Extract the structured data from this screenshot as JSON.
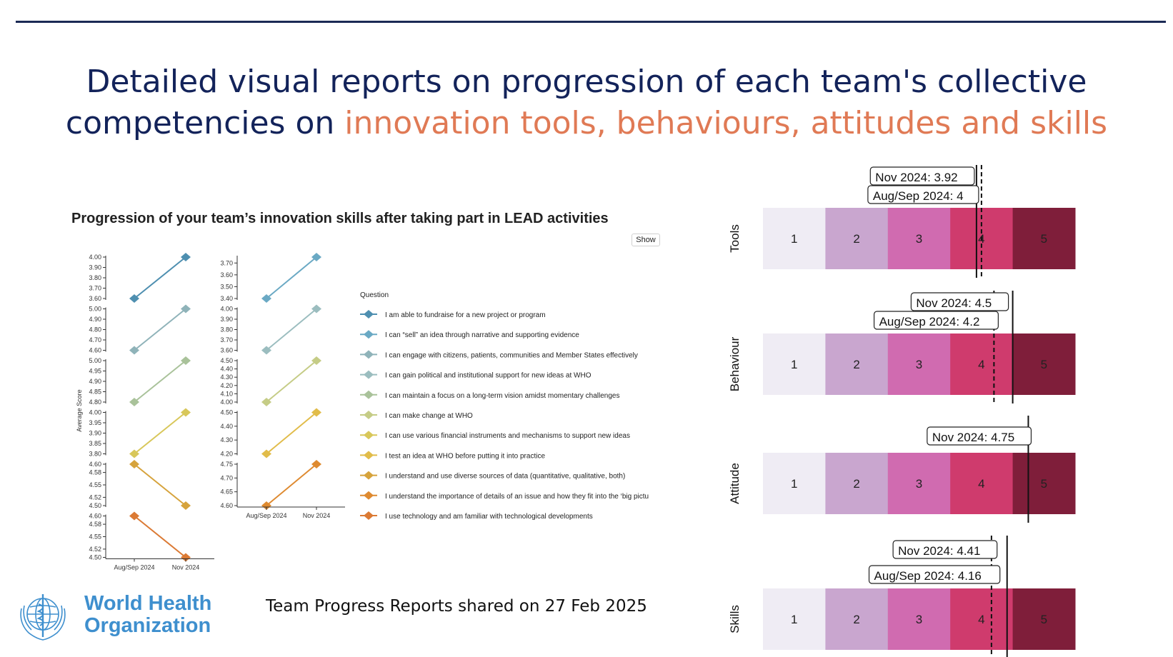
{
  "header": {
    "title_part1": "Detailed visual reports on progression of each team's collective",
    "title_part2": "competencies on ",
    "title_highlight": "innovation tools, behaviours, attitudes and skills",
    "title_color": "#13235a",
    "highlight_color": "#e07a55"
  },
  "left_chart": {
    "heading": "Progression of your team’s innovation skills after taking part in LEAD activities",
    "show_button": "Show",
    "ylabel": "Average Score",
    "legend_title": "Question"
  },
  "footer": {
    "text": "Team Progress Reports shared on 27 Feb 2025"
  },
  "logo": {
    "line1": "World Health",
    "line2": "Organization",
    "icon": "who-emblem-icon"
  },
  "chart_data": [
    {
      "type": "line",
      "title": "Progression of your team’s innovation skills after taking part in LEAD activities",
      "ylabel": "Average Score",
      "legend_title": "Question",
      "x": [
        "Aug/Sep 2024",
        "Nov 2024"
      ],
      "panels": [
        {
          "col": 0,
          "row": 0,
          "ylim": [
            3.6,
            4.0
          ],
          "ticks": [
            "3.60",
            "3.70",
            "3.80",
            "3.90",
            "4.00"
          ],
          "values": [
            3.6,
            4.0
          ],
          "color": "#4e8fb0"
        },
        {
          "col": 0,
          "row": 1,
          "ylim": [
            4.6,
            5.0
          ],
          "ticks": [
            "4.60",
            "4.70",
            "4.80",
            "4.90",
            "5.00"
          ],
          "values": [
            4.6,
            5.0
          ],
          "color": "#8fb3b9"
        },
        {
          "col": 0,
          "row": 2,
          "ylim": [
            4.8,
            5.0
          ],
          "ticks": [
            "4.80",
            "4.85",
            "4.90",
            "4.95",
            "5.00"
          ],
          "values": [
            4.8,
            5.0
          ],
          "color": "#a9c29a"
        },
        {
          "col": 0,
          "row": 3,
          "ylim": [
            3.8,
            4.0
          ],
          "ticks": [
            "3.80",
            "3.85",
            "3.90",
            "3.95",
            "4.00"
          ],
          "values": [
            3.8,
            4.0
          ],
          "color": "#d8c75a"
        },
        {
          "col": 0,
          "row": 4,
          "ylim": [
            4.5,
            4.6
          ],
          "ticks": [
            "4.50",
            "4.52",
            "4.55",
            "4.58",
            "4.60"
          ],
          "values": [
            4.6,
            4.5
          ],
          "color": "#d6a33c"
        },
        {
          "col": 0,
          "row": 5,
          "ylim": [
            4.5,
            4.6
          ],
          "ticks": [
            "4.50",
            "4.52",
            "4.55",
            "4.58",
            "4.60"
          ],
          "values": [
            4.6,
            4.5
          ],
          "color": "#db7a34"
        },
        {
          "col": 1,
          "row": 0,
          "ylim": [
            3.4,
            3.75
          ],
          "ticks": [
            "3.40",
            "3.50",
            "3.60",
            "3.70"
          ],
          "values": [
            3.4,
            3.75
          ],
          "color": "#6aa9c4"
        },
        {
          "col": 1,
          "row": 1,
          "ylim": [
            3.6,
            4.0
          ],
          "ticks": [
            "3.60",
            "3.70",
            "3.80",
            "3.90",
            "4.00"
          ],
          "values": [
            3.6,
            4.0
          ],
          "color": "#9bbdbf"
        },
        {
          "col": 1,
          "row": 2,
          "ylim": [
            4.0,
            4.5
          ],
          "ticks": [
            "4.00",
            "4.10",
            "4.20",
            "4.30",
            "4.40",
            "4.50"
          ],
          "values": [
            4.0,
            4.5
          ],
          "color": "#c5cc86"
        },
        {
          "col": 1,
          "row": 3,
          "ylim": [
            4.2,
            4.5
          ],
          "ticks": [
            "4.20",
            "4.30",
            "4.40",
            "4.50"
          ],
          "values": [
            4.2,
            4.5
          ],
          "color": "#e1bc4a"
        },
        {
          "col": 1,
          "row": 4,
          "ylim": [
            4.6,
            4.75
          ],
          "ticks": [
            "4.60",
            "4.65",
            "4.70",
            "4.75"
          ],
          "values": [
            4.6,
            4.75
          ],
          "color": "#de8a30"
        }
      ],
      "legend": [
        {
          "label": "I am able to fundraise for a new project or program",
          "color": "#4e8fb0"
        },
        {
          "label": "I can “sell” an idea through narrative and supporting evidence",
          "color": "#6aa9c4"
        },
        {
          "label": "I can engage with citizens, patients, communities and Member States effectively",
          "color": "#8fb3b9"
        },
        {
          "label": "I can gain political and institutional support for new ideas at WHO",
          "color": "#9bbdbf"
        },
        {
          "label": "I can maintain a focus on a long-term vision amidst momentary challenges",
          "color": "#a9c29a"
        },
        {
          "label": "I can make change at WHO",
          "color": "#c5cc86"
        },
        {
          "label": "I can use various financial instruments and mechanisms to support new ideas",
          "color": "#d8c75a"
        },
        {
          "label": "I test an idea at WHO before putting it into practice",
          "color": "#e1bc4a"
        },
        {
          "label": "I understand and use diverse sources of data (quantitative, qualitative, both)",
          "color": "#d6a33c"
        },
        {
          "label": "I understand the importance of details of an issue and how they fit into the ‘big pictu",
          "color": "#de8a30"
        },
        {
          "label": "I use technology and am familiar with technological developments",
          "color": "#db7a34"
        }
      ]
    },
    {
      "type": "bar",
      "xlim": [
        0.5,
        5.5
      ],
      "segments": [
        "1",
        "2",
        "3",
        "4",
        "5"
      ],
      "segment_colors": [
        "#efecf4",
        "#c9a6cf",
        "#d06bb0",
        "#cf3b6d",
        "#7f1e3a"
      ],
      "rows": [
        {
          "name": "Tools",
          "nov": 3.92,
          "aug": 4,
          "nov_label": "Nov 2024: 3.92",
          "aug_label": "Aug/Sep 2024: 4"
        },
        {
          "name": "Behaviour",
          "nov": 4.5,
          "aug": 4.2,
          "nov_label": "Nov 2024: 4.5",
          "aug_label": "Aug/Sep 2024: 4.2"
        },
        {
          "name": "Attitude",
          "nov": 4.75,
          "aug": null,
          "nov_label": "Nov 2024: 4.75",
          "aug_label": ""
        },
        {
          "name": "Skills",
          "nov": 4.41,
          "aug": 4.16,
          "nov_label": "Nov 2024: 4.41",
          "aug_label": "Aug/Sep 2024: 4.16"
        }
      ]
    }
  ]
}
